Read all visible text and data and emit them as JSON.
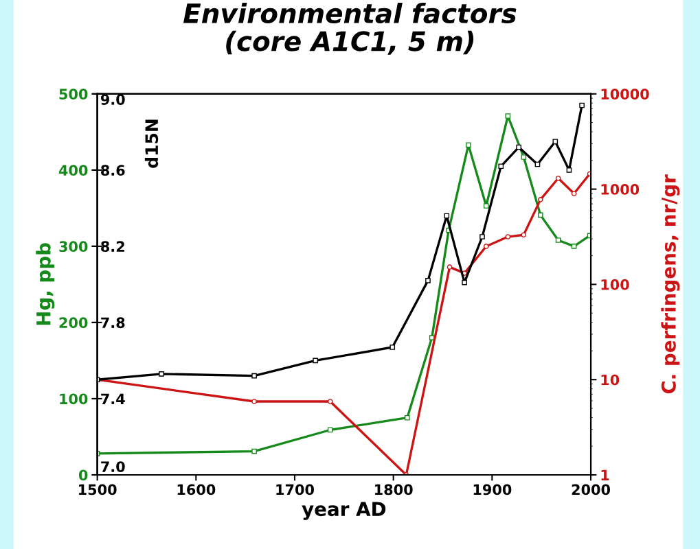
{
  "chart_data": {
    "type": "line",
    "title": "Environmental factors\n(core A1C1, 5 m)",
    "xlabel": "year AD",
    "ylabel": "Hg, ppb",
    "y2label": "C. perfringens, nr/gr",
    "y3label": "d15N",
    "xlim": [
      1500,
      2000
    ],
    "xticks": [
      1500,
      1600,
      1700,
      1800,
      1900,
      2000
    ],
    "ylim": [
      0,
      500
    ],
    "yticks": [
      0,
      100,
      200,
      300,
      400,
      500
    ],
    "y2lim": [
      1,
      10000
    ],
    "y2ticks": [
      1,
      10,
      100,
      1000,
      10000
    ],
    "log": "y2",
    "y3lim": [
      7.0,
      9.0
    ],
    "y3ticks": [
      {
        "value": 7.0,
        "label": "7.0"
      },
      {
        "value": 7.4,
        "label": "7.4"
      },
      {
        "value": 7.8,
        "label": "7.8"
      },
      {
        "value": 8.2,
        "label": "8.2"
      },
      {
        "value": 8.6,
        "label": "8.6"
      },
      {
        "value": 9.0,
        "label": "9.0"
      }
    ],
    "grid": false,
    "legend": false,
    "series": [
      {
        "color": "#15891a",
        "marker": "square",
        "x": [
          1500,
          1659,
          1736,
          1814,
          1839,
          1856,
          1876,
          1894,
          1916,
          1932,
          1949,
          1967,
          1983,
          1999
        ],
        "values": [
          28,
          31,
          59,
          75,
          180,
          321,
          433,
          353,
          471,
          417,
          341,
          308,
          300,
          314
        ]
      },
      {
        "color": "#cc1414",
        "marker": "circle",
        "axis": "y2",
        "x": [
          1500,
          1659,
          1736,
          1813,
          1857,
          1872,
          1894,
          1916,
          1932,
          1949,
          1967,
          1983,
          1999
        ],
        "values": [
          10,
          5.9,
          5.9,
          1,
          152,
          131,
          251,
          316,
          331,
          776,
          1300,
          900,
          1450
        ]
      },
      {
        "color": "#000000",
        "marker": "square",
        "axis": "y3",
        "x": [
          1500,
          1565,
          1659,
          1721,
          1799,
          1835,
          1854,
          1872,
          1890,
          1909,
          1927,
          1946,
          1964,
          1978,
          1991
        ],
        "values": [
          7.5,
          7.53,
          7.52,
          7.6,
          7.67,
          8.02,
          8.36,
          8.01,
          8.25,
          8.62,
          8.72,
          8.63,
          8.75,
          8.6,
          8.94
        ]
      }
    ]
  }
}
